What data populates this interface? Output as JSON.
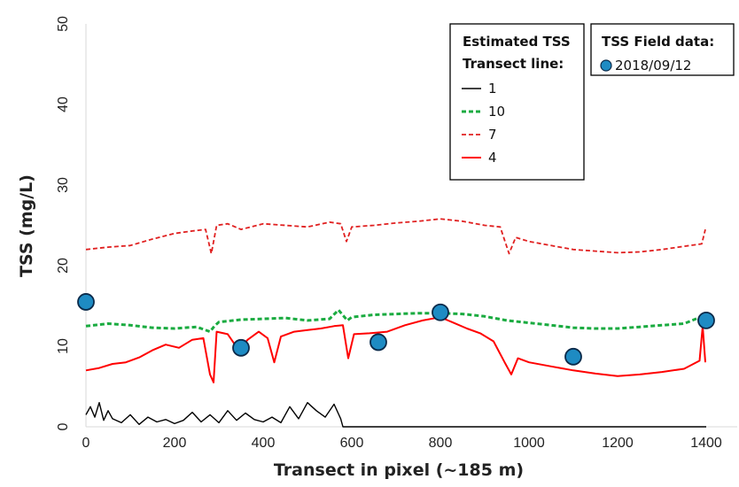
{
  "chart_data": {
    "type": "line",
    "xlabel": "Transect in pixel (~185 m)",
    "ylabel": "TSS (mg/L)",
    "xlim": [
      0,
      1400
    ],
    "ylim": [
      0,
      50
    ],
    "x_ticks": [
      "0",
      "200",
      "400",
      "600",
      "800",
      "1000",
      "1200",
      "1400"
    ],
    "y_ticks": [
      "0",
      "10",
      "20",
      "30",
      "40",
      "50"
    ],
    "grid": false,
    "legend_estimated": {
      "title_line1": "Estimated TSS",
      "title_line2": "Transect line:",
      "placement": "top-right"
    },
    "legend_field": {
      "title": "TSS Field data:",
      "placement": "top-right"
    },
    "series": [
      {
        "name": "1",
        "color": "#000000",
        "style": "solid",
        "x": [
          0,
          10,
          20,
          30,
          40,
          50,
          60,
          80,
          100,
          120,
          140,
          160,
          180,
          200,
          220,
          240,
          260,
          280,
          300,
          320,
          340,
          360,
          380,
          400,
          420,
          440,
          460,
          480,
          500,
          520,
          540,
          560,
          575,
          580,
          600,
          700,
          800,
          900,
          1000,
          1100,
          1200,
          1300,
          1400
        ],
        "values": [
          1.5,
          2.5,
          1.2,
          3.0,
          0.8,
          2.0,
          1.0,
          0.5,
          1.5,
          0.3,
          1.2,
          0.6,
          0.9,
          0.4,
          0.8,
          1.8,
          0.6,
          1.5,
          0.5,
          2.0,
          0.8,
          1.7,
          0.9,
          0.6,
          1.2,
          0.5,
          2.5,
          1.0,
          3.0,
          2.0,
          1.2,
          2.8,
          1.0,
          0.0,
          0.0,
          0.0,
          0.0,
          0.0,
          0.0,
          0.0,
          0.0,
          0.0,
          0.0
        ]
      },
      {
        "name": "10",
        "color": "#1aab40",
        "style": "dashed",
        "x": [
          0,
          50,
          100,
          150,
          200,
          250,
          280,
          290,
          300,
          350,
          400,
          450,
          500,
          550,
          570,
          590,
          600,
          650,
          700,
          750,
          800,
          850,
          900,
          950,
          1000,
          1050,
          1100,
          1150,
          1200,
          1250,
          1300,
          1350,
          1395
        ],
        "values": [
          12.5,
          12.8,
          12.6,
          12.3,
          12.2,
          12.4,
          11.8,
          12.5,
          13.0,
          13.3,
          13.4,
          13.5,
          13.2,
          13.4,
          14.5,
          13.2,
          13.6,
          13.9,
          14.0,
          14.1,
          14.1,
          14.0,
          13.7,
          13.2,
          12.9,
          12.6,
          12.3,
          12.2,
          12.2,
          12.4,
          12.6,
          12.8,
          13.8
        ]
      },
      {
        "name": "7",
        "color": "#e02020",
        "style": "dashed",
        "x": [
          0,
          50,
          100,
          150,
          200,
          240,
          270,
          283,
          295,
          320,
          350,
          400,
          450,
          500,
          550,
          575,
          588,
          600,
          650,
          700,
          750,
          800,
          850,
          900,
          935,
          955,
          970,
          1000,
          1050,
          1100,
          1150,
          1200,
          1250,
          1300,
          1350,
          1390,
          1398
        ],
        "values": [
          22.0,
          22.3,
          22.5,
          23.3,
          24.0,
          24.3,
          24.5,
          21.5,
          25.0,
          25.2,
          24.5,
          25.2,
          25.0,
          24.8,
          25.4,
          25.2,
          23.0,
          24.8,
          25.0,
          25.3,
          25.5,
          25.8,
          25.5,
          25.0,
          24.8,
          21.5,
          23.5,
          23.0,
          22.5,
          22.0,
          21.8,
          21.6,
          21.7,
          22.0,
          22.4,
          22.7,
          24.5
        ]
      },
      {
        "name": "4",
        "color": "#ff0000",
        "style": "solid",
        "x": [
          0,
          30,
          60,
          90,
          120,
          150,
          180,
          210,
          240,
          265,
          280,
          288,
          295,
          320,
          345,
          365,
          390,
          410,
          425,
          440,
          470,
          500,
          530,
          560,
          580,
          592,
          605,
          640,
          680,
          720,
          760,
          800,
          830,
          860,
          890,
          920,
          945,
          960,
          975,
          1000,
          1050,
          1100,
          1150,
          1200,
          1250,
          1300,
          1350,
          1385,
          1392,
          1398
        ],
        "values": [
          7.0,
          7.3,
          7.8,
          8.0,
          8.6,
          9.5,
          10.2,
          9.8,
          10.8,
          11.0,
          6.5,
          5.5,
          11.8,
          11.5,
          9.5,
          10.8,
          11.8,
          11.0,
          8.0,
          11.2,
          11.8,
          12.0,
          12.2,
          12.5,
          12.6,
          8.5,
          11.5,
          11.6,
          11.8,
          12.6,
          13.2,
          13.6,
          12.9,
          12.2,
          11.6,
          10.6,
          8.0,
          6.5,
          8.5,
          8.0,
          7.5,
          7.0,
          6.6,
          6.3,
          6.5,
          6.8,
          7.2,
          8.2,
          12.5,
          8.0
        ]
      },
      {
        "name": "2018/09/12",
        "color": "#1e8bc3",
        "style": "markers",
        "x": [
          0,
          350,
          660,
          800,
          1100,
          1400
        ],
        "values": [
          15.5,
          9.8,
          10.5,
          14.2,
          8.7,
          13.2
        ]
      }
    ]
  }
}
